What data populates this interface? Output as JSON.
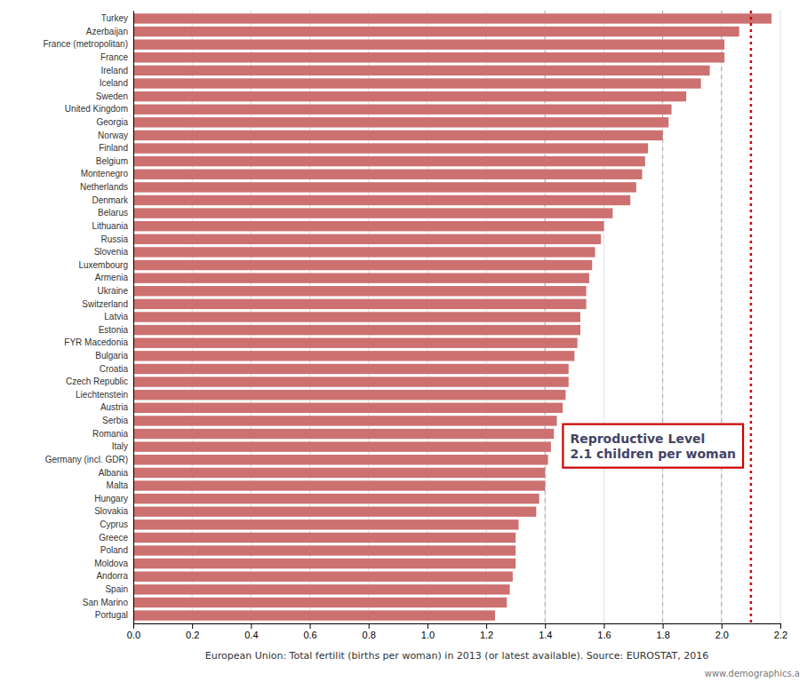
{
  "chart_data": {
    "type": "bar",
    "orientation": "horizontal",
    "categories": [
      "Turkey",
      "Azerbaijan",
      "France (metropolitan)",
      "France",
      "Ireland",
      "Iceland",
      "Sweden",
      "United Kingdom",
      "Georgia",
      "Norway",
      "Finland",
      "Belgium",
      "Montenegro",
      "Netherlands",
      "Denmark",
      "Belarus",
      "Lithuania",
      "Russia",
      "Slovenia",
      "Luxembourg",
      "Armenia",
      "Ukraine",
      "Switzerland",
      "Latvia",
      "Estonia",
      "FYR Macedonia",
      "Bulgaria",
      "Croatia",
      "Czech Republic",
      "Liechtenstein",
      "Austria",
      "Serbia",
      "Romania",
      "Italy",
      "Germany (incl. GDR)",
      "Albania",
      "Malta",
      "Hungary",
      "Slovakia",
      "Cyprus",
      "Greece",
      "Poland",
      "Moldova",
      "Andorra",
      "Spain",
      "San Marino",
      "Portugal"
    ],
    "values": [
      2.17,
      2.06,
      2.01,
      2.01,
      1.96,
      1.93,
      1.88,
      1.83,
      1.82,
      1.8,
      1.75,
      1.74,
      1.73,
      1.71,
      1.69,
      1.63,
      1.6,
      1.59,
      1.57,
      1.56,
      1.55,
      1.54,
      1.54,
      1.52,
      1.52,
      1.51,
      1.5,
      1.48,
      1.48,
      1.47,
      1.46,
      1.44,
      1.43,
      1.42,
      1.41,
      1.4,
      1.4,
      1.38,
      1.37,
      1.31,
      1.3,
      1.3,
      1.3,
      1.29,
      1.28,
      1.27,
      1.23
    ],
    "color": "#cd7070",
    "x_label": "European Union:  Total fertilit (births per woman) in 2013 (or latest available).  Source: EUROSTAT,  2016",
    "xlim": [
      0.0,
      2.2
    ],
    "xticks": [
      {
        "value": 0.0,
        "label": "0.0"
      },
      0.2,
      0.4,
      0.6,
      0.8,
      {
        "value": 1.0,
        "label": "1.0"
      },
      1.2,
      1.4,
      1.6,
      1.8,
      {
        "value": 2.0,
        "label": "2.0"
      },
      2.2
    ],
    "grid": true,
    "reference_line": 2.1,
    "highlight_lines": [
      1.4,
      1.8,
      2.0
    ],
    "annotations": [
      "Reproductive Level\n2.1 children per woman",
      "www.demographics.a"
    ]
  }
}
